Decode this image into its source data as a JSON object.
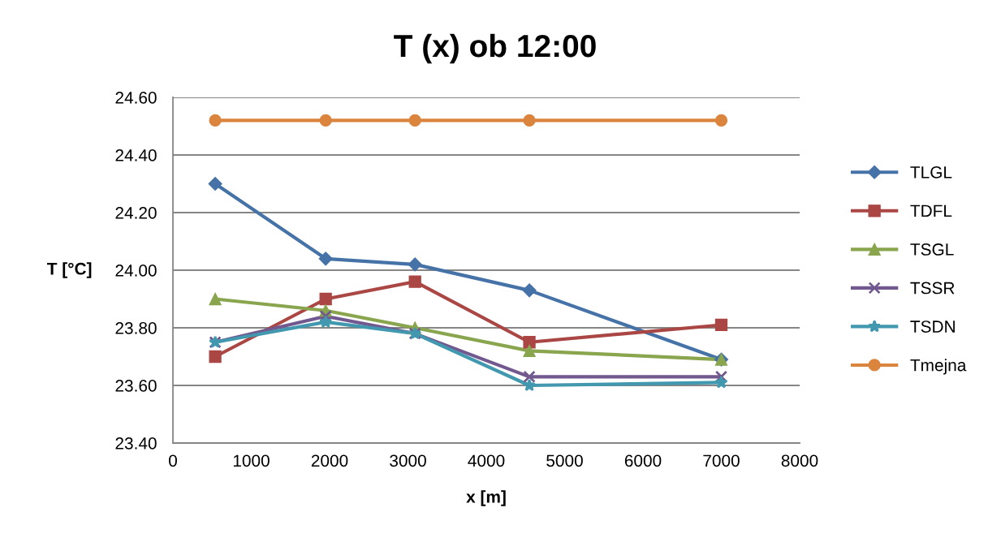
{
  "chart_data": {
    "type": "line",
    "title": "T (x) ob 12:00",
    "xlabel": "x [m]",
    "ylabel": "T [°C]",
    "x": [
      540,
      1950,
      3090,
      4550,
      7000
    ],
    "series": [
      {
        "name": "TLGL",
        "color": "#4572a7",
        "marker": "diamond",
        "values": [
          24.3,
          24.04,
          24.02,
          23.93,
          23.69
        ]
      },
      {
        "name": "TDFL",
        "color": "#aa4643",
        "marker": "square",
        "values": [
          23.7,
          23.9,
          23.96,
          23.75,
          23.81
        ]
      },
      {
        "name": "TSGL",
        "color": "#89a54e",
        "marker": "triangle",
        "values": [
          23.9,
          23.86,
          23.8,
          23.72,
          23.69
        ]
      },
      {
        "name": "TSSR",
        "color": "#71588f",
        "marker": "cross",
        "values": [
          23.75,
          23.84,
          23.78,
          23.63,
          23.63
        ]
      },
      {
        "name": "TSDN",
        "color": "#4198af",
        "marker": "star",
        "values": [
          23.75,
          23.82,
          23.78,
          23.6,
          23.61
        ]
      },
      {
        "name": "Tmejna",
        "color": "#db843d",
        "marker": "circle",
        "values": [
          24.52,
          24.52,
          24.52,
          24.52,
          24.52
        ]
      }
    ],
    "xlim": [
      0,
      8000
    ],
    "xticks": [
      0,
      1000,
      2000,
      3000,
      4000,
      5000,
      6000,
      7000,
      8000
    ],
    "ylim": [
      23.4,
      24.6
    ],
    "yticks": [
      {
        "value": 23.4,
        "label": "23.40"
      },
      {
        "value": 23.6,
        "label": "23.60"
      },
      {
        "value": 23.8,
        "label": "23.80"
      },
      {
        "value": 24.0,
        "label": "24.00"
      },
      {
        "value": 24.2,
        "label": "24.20"
      },
      {
        "value": 24.4,
        "label": "24.40"
      },
      {
        "value": 24.6,
        "label": "24.60"
      }
    ],
    "grid": "y",
    "legend": "right",
    "line_style": "solid"
  }
}
